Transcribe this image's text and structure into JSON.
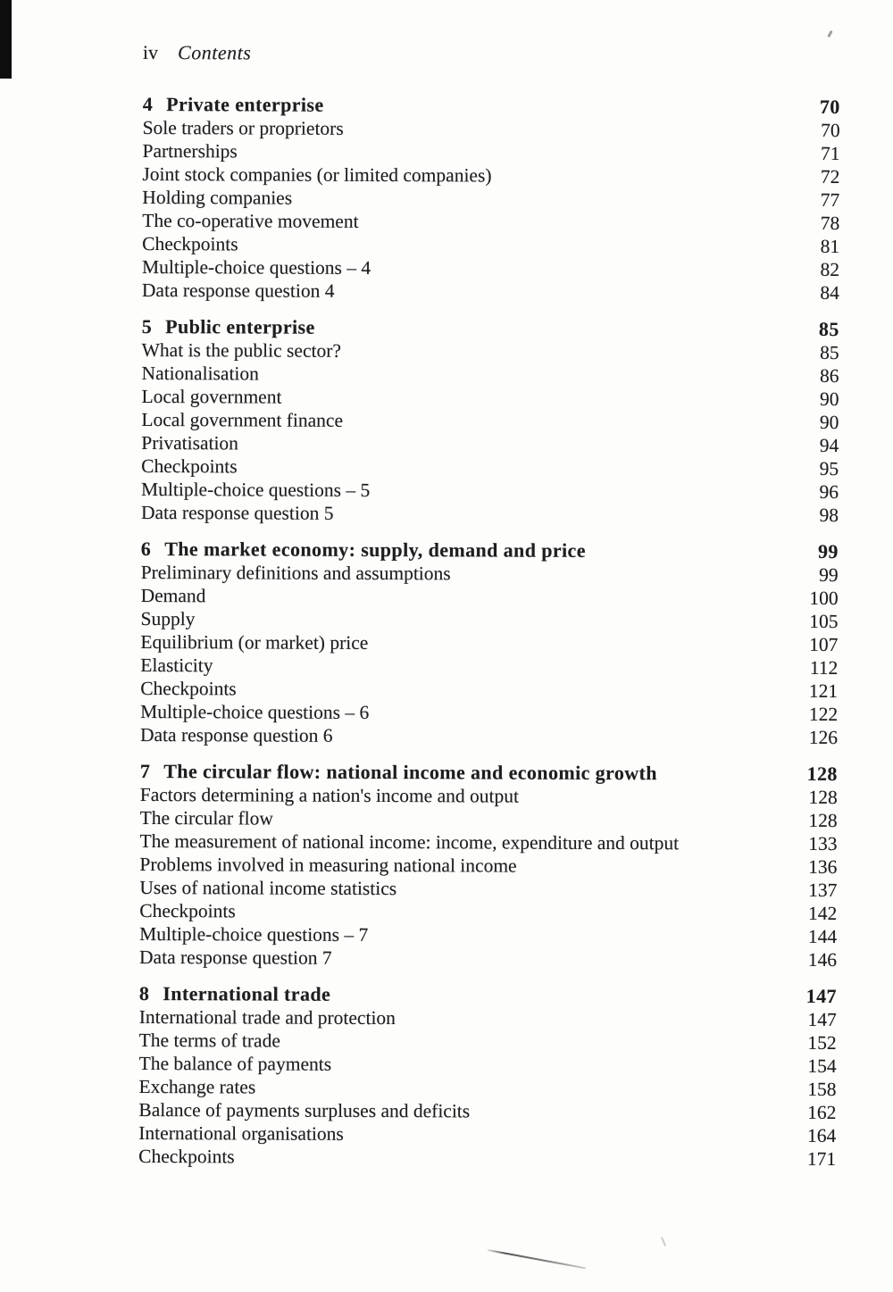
{
  "page": {
    "folio": "iv",
    "header_title": "Contents"
  },
  "toc": {
    "chapters": [
      {
        "number": "4",
        "title": "Private enterprise",
        "page": "70",
        "entries": [
          {
            "label": "Sole traders or proprietors",
            "page": "70"
          },
          {
            "label": "Partnerships",
            "page": "71"
          },
          {
            "label": "Joint stock companies (or limited companies)",
            "page": "72"
          },
          {
            "label": "Holding companies",
            "page": "77"
          },
          {
            "label": "The co-operative movement",
            "page": "78"
          },
          {
            "label": "Checkpoints",
            "page": "81"
          },
          {
            "label": "Multiple-choice questions – 4",
            "page": "82"
          },
          {
            "label": "Data response question 4",
            "page": "84"
          }
        ]
      },
      {
        "number": "5",
        "title": "Public enterprise",
        "page": "85",
        "entries": [
          {
            "label": "What is the public sector?",
            "page": "85"
          },
          {
            "label": "Nationalisation",
            "page": "86"
          },
          {
            "label": "Local government",
            "page": "90"
          },
          {
            "label": "Local government finance",
            "page": "90"
          },
          {
            "label": "Privatisation",
            "page": "94"
          },
          {
            "label": "Checkpoints",
            "page": "95"
          },
          {
            "label": "Multiple-choice questions – 5",
            "page": "96"
          },
          {
            "label": "Data response question 5",
            "page": "98"
          }
        ]
      },
      {
        "number": "6",
        "title": "The market economy: supply, demand and price",
        "page": "99",
        "entries": [
          {
            "label": "Preliminary definitions and assumptions",
            "page": "99"
          },
          {
            "label": "Demand",
            "page": "100"
          },
          {
            "label": "Supply",
            "page": "105"
          },
          {
            "label": "Equilibrium (or market) price",
            "page": "107"
          },
          {
            "label": "Elasticity",
            "page": "112"
          },
          {
            "label": "Checkpoints",
            "page": "121"
          },
          {
            "label": "Multiple-choice questions – 6",
            "page": "122"
          },
          {
            "label": "Data response question 6",
            "page": "126"
          }
        ]
      },
      {
        "number": "7",
        "title": "The circular flow: national income and economic growth",
        "page": "128",
        "entries": [
          {
            "label": "Factors determining a nation's income and output",
            "page": "128"
          },
          {
            "label": "The circular flow",
            "page": "128"
          },
          {
            "label": "The measurement of national income: income, expenditure and output",
            "page": "133"
          },
          {
            "label": "Problems involved in measuring national income",
            "page": "136"
          },
          {
            "label": "Uses of national income statistics",
            "page": "137"
          },
          {
            "label": "Checkpoints",
            "page": "142"
          },
          {
            "label": "Multiple-choice questions – 7",
            "page": "144"
          },
          {
            "label": "Data response question 7",
            "page": "146"
          }
        ]
      },
      {
        "number": "8",
        "title": "International trade",
        "page": "147",
        "entries": [
          {
            "label": "International trade and protection",
            "page": "147"
          },
          {
            "label": "The terms of trade",
            "page": "152"
          },
          {
            "label": "The balance of payments",
            "page": "154"
          },
          {
            "label": "Exchange rates",
            "page": "158"
          },
          {
            "label": "Balance of payments surpluses and deficits",
            "page": "162"
          },
          {
            "label": "International organisations",
            "page": "164"
          },
          {
            "label": "Checkpoints",
            "page": "171"
          }
        ]
      }
    ]
  }
}
